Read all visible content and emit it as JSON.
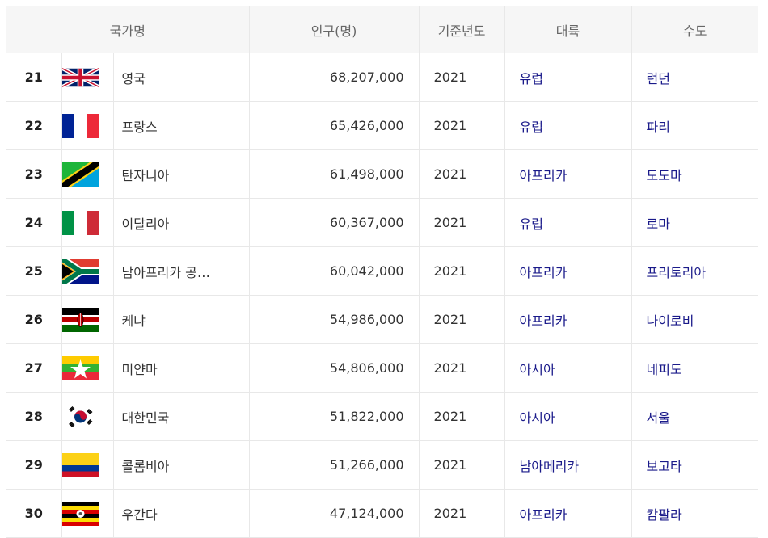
{
  "headers": {
    "country": "국가명",
    "population": "인구(명)",
    "year": "기준년도",
    "continent": "대륙",
    "capital": "수도"
  },
  "rows": [
    {
      "rank": "21",
      "flag": "uk-flag",
      "name": "영국",
      "population": "68,207,000",
      "year": "2021",
      "continent": "유럽",
      "capital": "런던"
    },
    {
      "rank": "22",
      "flag": "france-flag",
      "name": "프랑스",
      "population": "65,426,000",
      "year": "2021",
      "continent": "유럽",
      "capital": "파리"
    },
    {
      "rank": "23",
      "flag": "tanzania-flag",
      "name": "탄자니아",
      "population": "61,498,000",
      "year": "2021",
      "continent": "아프리카",
      "capital": "도도마"
    },
    {
      "rank": "24",
      "flag": "italy-flag",
      "name": "이탈리아",
      "population": "60,367,000",
      "year": "2021",
      "continent": "유럽",
      "capital": "로마"
    },
    {
      "rank": "25",
      "flag": "south-africa-flag",
      "name": "남아프리카 공…",
      "population": "60,042,000",
      "year": "2021",
      "continent": "아프리카",
      "capital": "프리토리아"
    },
    {
      "rank": "26",
      "flag": "kenya-flag",
      "name": "케냐",
      "population": "54,986,000",
      "year": "2021",
      "continent": "아프리카",
      "capital": "나이로비"
    },
    {
      "rank": "27",
      "flag": "myanmar-flag",
      "name": "미얀마",
      "population": "54,806,000",
      "year": "2021",
      "continent": "아시아",
      "capital": "네피도"
    },
    {
      "rank": "28",
      "flag": "korea-flag",
      "name": "대한민국",
      "population": "51,822,000",
      "year": "2021",
      "continent": "아시아",
      "capital": "서울"
    },
    {
      "rank": "29",
      "flag": "colombia-flag",
      "name": "콜롬비아",
      "population": "51,266,000",
      "year": "2021",
      "continent": "남아메리카",
      "capital": "보고타"
    },
    {
      "rank": "30",
      "flag": "uganda-flag",
      "name": "우간다",
      "population": "47,124,000",
      "year": "2021",
      "continent": "아프리카",
      "capital": "캄팔라"
    }
  ]
}
